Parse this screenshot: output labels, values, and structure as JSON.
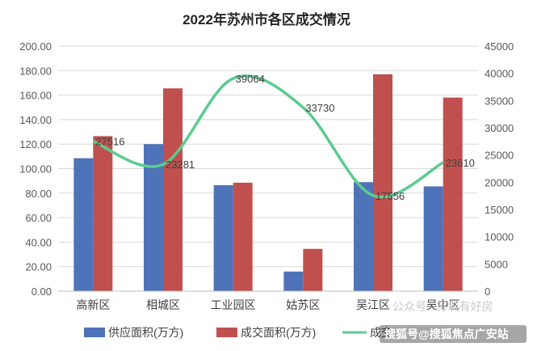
{
  "chart_data": {
    "type": "bar",
    "title": "2022年苏州市各区成交情况",
    "categories": [
      "高新区",
      "相城区",
      "工业园区",
      "姑苏区",
      "吴江区",
      "吴中区"
    ],
    "series": [
      {
        "name": "供应面积(万方)",
        "kind": "bar",
        "axis": "left",
        "color": "#4F73B8",
        "values": [
          108.5,
          120.0,
          86.5,
          16.0,
          89.0,
          85.5
        ]
      },
      {
        "name": "成交面积(万方)",
        "kind": "bar",
        "axis": "left",
        "color": "#C0504D",
        "values": [
          126.5,
          165.5,
          88.5,
          34.5,
          177.0,
          158.0
        ]
      },
      {
        "name": "成交",
        "kind": "line",
        "axis": "right",
        "color": "#5CCB8E",
        "values": [
          27516,
          23281,
          39064,
          33730,
          17556,
          23610
        ],
        "labels": [
          "27516",
          "23281",
          "39064",
          "33730",
          "17556",
          "23610"
        ]
      }
    ],
    "y_left": {
      "min": 0,
      "max": 200,
      "ticks": [
        "0.00",
        "20.00",
        "40.00",
        "60.00",
        "80.00",
        "100.00",
        "120.00",
        "140.00",
        "160.00",
        "180.00",
        "200.00"
      ]
    },
    "y_right": {
      "min": 0,
      "max": 45000,
      "ticks": [
        "0",
        "5000",
        "10000",
        "15000",
        "20000",
        "25000",
        "30000",
        "35000",
        "40000",
        "45000"
      ]
    },
    "grid": true,
    "legend_position": "bottom"
  },
  "watermark": {
    "text1": "公众号 · 苏城有好房",
    "text2": "搜狐号@搜狐焦点广安站"
  }
}
